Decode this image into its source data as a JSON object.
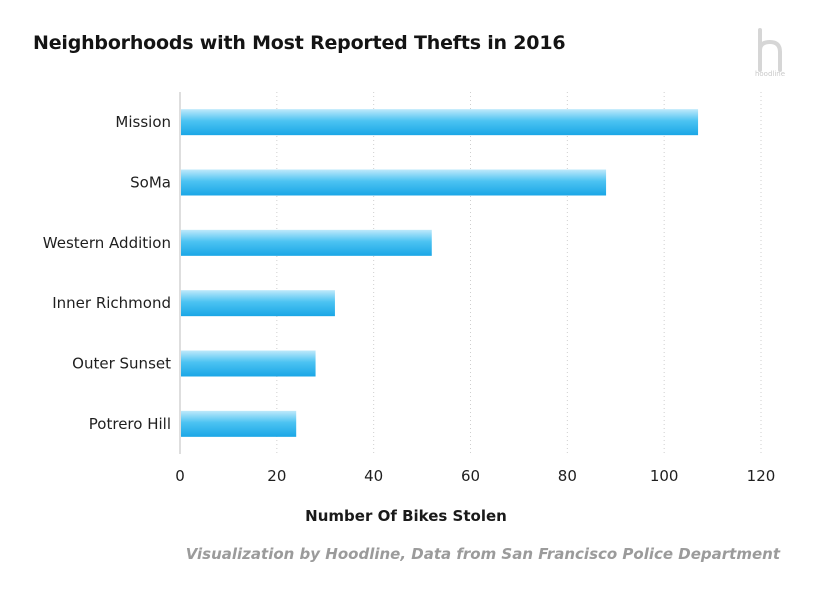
{
  "chart_data": {
    "type": "bar",
    "orientation": "horizontal",
    "title": "Neighborhoods with Most Reported Thefts in 2016",
    "categories": [
      "Mission",
      "SoMa",
      "Western Addition",
      "Inner Richmond",
      "Outer Sunset",
      "Potrero Hill"
    ],
    "values": [
      107,
      88,
      52,
      32,
      28,
      24
    ],
    "xlabel": "Number Of Bikes Stolen",
    "ylabel": "",
    "xlim": [
      0,
      120
    ],
    "xticks": [
      0,
      20,
      40,
      60,
      80,
      100,
      120
    ],
    "grid": "vertical-dotted",
    "bar_color": "#2bb3ec",
    "source": "Visualization by Hoodline, Data from San Francisco Police Department"
  },
  "branding": {
    "logo_text": "hoodline",
    "logo_icon": "hoodline-h-icon"
  }
}
